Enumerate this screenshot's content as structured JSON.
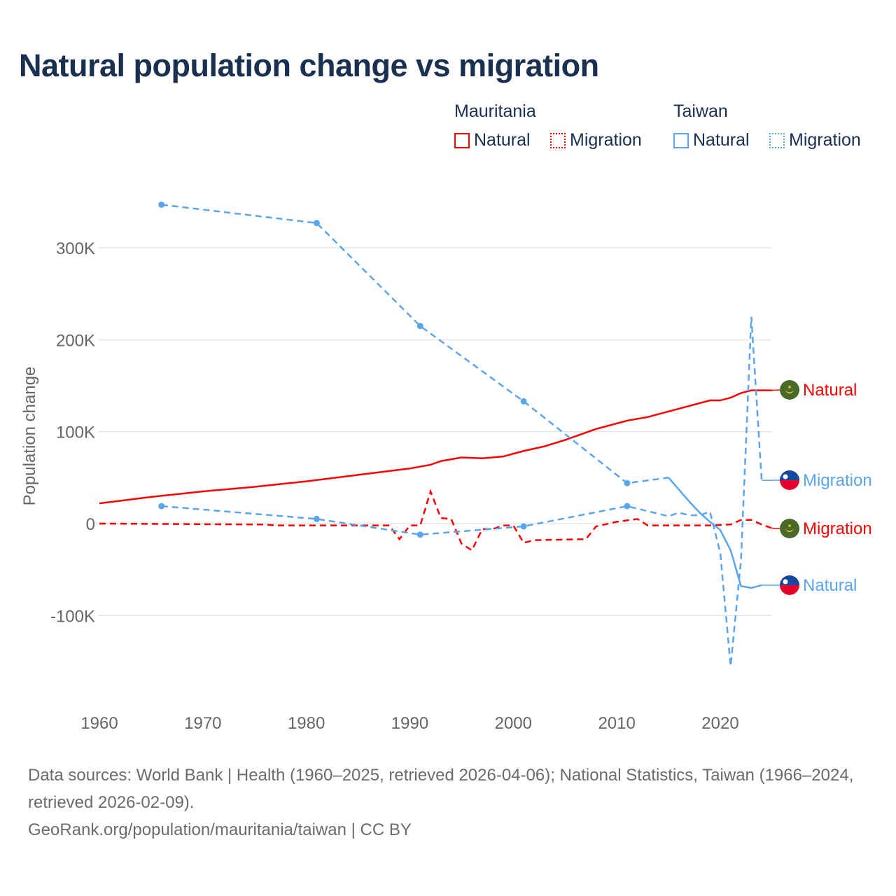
{
  "title": "Natural population change vs migration",
  "legend": {
    "groups": [
      {
        "name": "Mauritania",
        "items": [
          "Natural",
          "Migration"
        ],
        "color": "#ff0000"
      },
      {
        "name": "Taiwan",
        "items": [
          "Natural",
          "Migration"
        ],
        "color": "#5aa5ec"
      }
    ]
  },
  "source": {
    "line1": "Data sources: World Bank | Health (1960–2025, retrieved 2026-04-06); National Statistics, Taiwan (1966–2024, retrieved 2026-02-09).",
    "line2": "GeoRank.org/population/mauritania/taiwan | CC BY"
  },
  "chart_data": {
    "type": "line",
    "ylabel": "Population change",
    "xlim": [
      1960,
      2025
    ],
    "ylim": [
      -160000,
      360000
    ],
    "x_ticks": [
      {
        "v": 1960,
        "label": "1960"
      },
      {
        "v": 1970,
        "label": "1970"
      },
      {
        "v": 1980,
        "label": "1980"
      },
      {
        "v": 1990,
        "label": "1990"
      },
      {
        "v": 2000,
        "label": "2000"
      },
      {
        "v": 2010,
        "label": "2010"
      },
      {
        "v": 2020,
        "label": "2020"
      }
    ],
    "y_ticks": [
      {
        "v": 300000,
        "label": "300K"
      },
      {
        "v": 200000,
        "label": "200K"
      },
      {
        "v": 100000,
        "label": "100K"
      },
      {
        "v": 0,
        "label": "0"
      },
      {
        "v": -100000,
        "label": "-100K"
      }
    ],
    "series": [
      {
        "name": "Natural",
        "country": "Mauritania",
        "color": "#ff0000",
        "style": "solid",
        "end_label": "Natural",
        "flag": "mauritania",
        "x": [
          1960,
          1965,
          1970,
          1975,
          1980,
          1985,
          1990,
          1992,
          1993,
          1995,
          1997,
          1999,
          2001,
          2003,
          2005,
          2008,
          2011,
          2013,
          2015,
          2017,
          2019,
          2020,
          2021,
          2022,
          2023,
          2025
        ],
        "y": [
          22000,
          29000,
          35000,
          40000,
          46000,
          53000,
          60000,
          64000,
          68000,
          72000,
          71000,
          73000,
          79000,
          84000,
          91000,
          103000,
          112000,
          116000,
          122000,
          128000,
          134000,
          134000,
          137000,
          142000,
          145000,
          145000
        ]
      },
      {
        "name": "Migration",
        "country": "Mauritania",
        "color": "#ff0000",
        "style": "dashed",
        "end_label": "Migration",
        "flag": "mauritania",
        "x": [
          1960,
          1976,
          1977,
          1988,
          1989,
          1990,
          1991,
          1992,
          1993,
          1994,
          1995,
          1996,
          1997,
          1998,
          1999,
          2000,
          2001,
          2002,
          2007,
          2008,
          2010,
          2012,
          2013,
          2019,
          2021,
          2022,
          2023,
          2024,
          2025
        ],
        "y": [
          0,
          -1000,
          -2000,
          -2000,
          -17000,
          -2000,
          -2000,
          35000,
          6000,
          5000,
          -22000,
          -29000,
          -6000,
          -6000,
          -2000,
          -2000,
          -21000,
          -18000,
          -17000,
          -3000,
          2000,
          5000,
          -2000,
          -2000,
          -1000,
          4000,
          4000,
          -1000,
          -5000
        ]
      },
      {
        "name": "Natural",
        "country": "Taiwan",
        "color": "#5aa5ec",
        "style": "mixed",
        "end_label": "Natural",
        "flag": "taiwan",
        "x": [
          1966,
          1981,
          1991,
          2001,
          2011,
          2015,
          2016,
          2017,
          2018,
          2019,
          2020,
          2021,
          2022,
          2023,
          2024
        ],
        "y": [
          347000,
          327000,
          215000,
          133000,
          44000,
          50000,
          37000,
          24000,
          12000,
          2000,
          -7000,
          -29000,
          -68000,
          -70000,
          -67000
        ],
        "markers": [
          1966,
          1981,
          1991,
          2001,
          2011
        ]
      },
      {
        "name": "Migration",
        "country": "Taiwan",
        "color": "#5aa5ec",
        "style": "dashed",
        "end_label": "Migration",
        "flag": "taiwan",
        "x": [
          1966,
          1981,
          1991,
          2001,
          2011,
          2015,
          2016,
          2017,
          2018,
          2019,
          2020,
          2021,
          2022,
          2023,
          2024
        ],
        "y": [
          19000,
          5000,
          -12000,
          -3000,
          19000,
          8000,
          12000,
          9000,
          9000,
          13000,
          -32000,
          -155000,
          -40000,
          225000,
          47000
        ],
        "markers": [
          1966,
          1981,
          1991,
          2001,
          2011
        ]
      }
    ]
  }
}
